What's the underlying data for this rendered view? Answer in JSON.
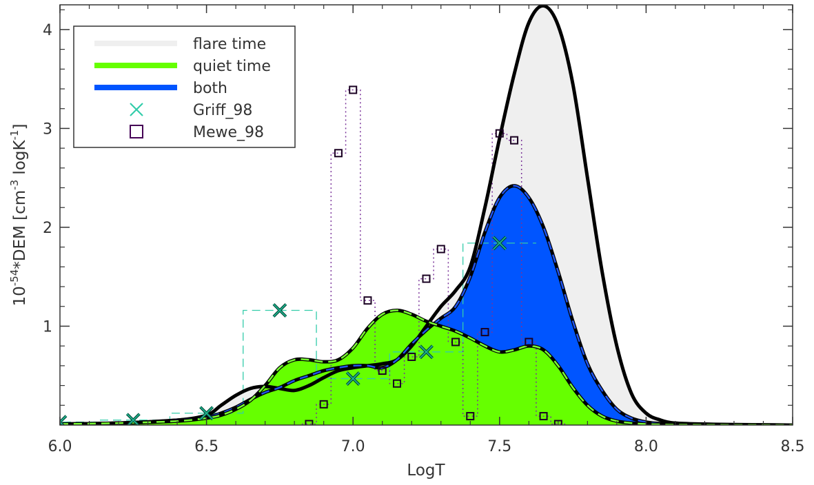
{
  "chart_data": {
    "type": "area",
    "xlabel": "LogT",
    "ylabel_main": "10",
    "ylabel_exp": "-54",
    "ylabel_mid": "*DEM [cm",
    "ylabel_exp2": "-3",
    "ylabel_mid2": " logK",
    "ylabel_exp3": "-1",
    "ylabel_end": "]",
    "xlim": [
      6.0,
      8.5
    ],
    "ylim": [
      0.0,
      4.25
    ],
    "xticks": [
      6.0,
      6.5,
      7.0,
      7.5,
      8.0,
      8.5
    ],
    "xtick_labels": [
      "6.0",
      "6.5",
      "7.0",
      "7.5",
      "8.0",
      "8.5"
    ],
    "yticks": [
      1,
      2,
      3,
      4
    ],
    "ytick_labels": [
      "1",
      "2",
      "3",
      "4"
    ],
    "legend_position": "top-left",
    "legend": [
      {
        "label": "flare time",
        "kind": "line",
        "color": "#efefef"
      },
      {
        "label": "quiet time",
        "kind": "line",
        "color": "#66ff00"
      },
      {
        "label": "both",
        "kind": "line",
        "color": "#0055ff"
      },
      {
        "label": "Griff_98",
        "kind": "x-marker",
        "color": "#33ccaa"
      },
      {
        "label": "Mewe_98",
        "kind": "square-marker",
        "color": "#440055"
      }
    ],
    "series": [
      {
        "name": "flare time",
        "fill": "#efefef",
        "x": [
          6.0,
          6.2,
          6.4,
          6.5,
          6.55,
          6.6,
          6.65,
          6.7,
          6.75,
          6.8,
          6.85,
          6.9,
          6.95,
          7.0,
          7.05,
          7.1,
          7.15,
          7.2,
          7.25,
          7.3,
          7.35,
          7.4,
          7.45,
          7.5,
          7.55,
          7.6,
          7.65,
          7.7,
          7.75,
          7.8,
          7.85,
          7.9,
          7.95,
          8.0,
          8.05,
          8.1,
          8.2,
          8.3,
          8.5
        ],
        "y": [
          0.01,
          0.02,
          0.05,
          0.1,
          0.2,
          0.3,
          0.37,
          0.39,
          0.37,
          0.35,
          0.4,
          0.48,
          0.55,
          0.58,
          0.6,
          0.62,
          0.66,
          0.8,
          1.0,
          1.2,
          1.36,
          1.6,
          2.2,
          2.9,
          3.55,
          4.07,
          4.24,
          4.04,
          3.45,
          2.5,
          1.55,
          0.8,
          0.32,
          0.12,
          0.05,
          0.02,
          0.01,
          0.005,
          0.0
        ]
      },
      {
        "name": "both",
        "fill": "#0055ff",
        "x": [
          6.0,
          6.2,
          6.4,
          6.5,
          6.55,
          6.6,
          6.65,
          6.7,
          6.75,
          6.8,
          6.85,
          6.9,
          6.95,
          7.0,
          7.05,
          7.1,
          7.15,
          7.2,
          7.25,
          7.3,
          7.35,
          7.4,
          7.45,
          7.5,
          7.55,
          7.6,
          7.65,
          7.7,
          7.75,
          7.8,
          7.85,
          7.9,
          7.95,
          8.0,
          8.05,
          8.1,
          8.2,
          8.3,
          8.5
        ],
        "y": [
          0.01,
          0.02,
          0.05,
          0.08,
          0.12,
          0.18,
          0.26,
          0.33,
          0.38,
          0.45,
          0.5,
          0.55,
          0.58,
          0.6,
          0.6,
          0.58,
          0.66,
          0.82,
          0.96,
          1.08,
          1.2,
          1.5,
          1.95,
          2.3,
          2.42,
          2.3,
          2.0,
          1.55,
          1.05,
          0.62,
          0.35,
          0.16,
          0.07,
          0.03,
          0.015,
          0.008,
          0.004,
          0.002,
          0.0
        ]
      },
      {
        "name": "quiet time",
        "fill": "#66ff00",
        "x": [
          6.0,
          6.2,
          6.4,
          6.5,
          6.55,
          6.6,
          6.65,
          6.7,
          6.75,
          6.8,
          6.85,
          6.9,
          6.95,
          7.0,
          7.05,
          7.1,
          7.15,
          7.2,
          7.25,
          7.3,
          7.35,
          7.4,
          7.45,
          7.5,
          7.55,
          7.6,
          7.65,
          7.7,
          7.75,
          7.8,
          7.85,
          7.9,
          7.95,
          8.0,
          8.05,
          8.1,
          8.2,
          8.3,
          8.5
        ],
        "y": [
          0.01,
          0.02,
          0.04,
          0.07,
          0.1,
          0.16,
          0.25,
          0.4,
          0.58,
          0.66,
          0.66,
          0.64,
          0.66,
          0.78,
          0.98,
          1.12,
          1.16,
          1.12,
          1.05,
          1.0,
          0.95,
          0.88,
          0.8,
          0.74,
          0.76,
          0.8,
          0.76,
          0.6,
          0.38,
          0.2,
          0.09,
          0.04,
          0.02,
          0.01,
          0.006,
          0.003,
          0.002,
          0.001,
          0.0
        ]
      }
    ],
    "griff_98": {
      "name": "Griff_98",
      "color": "#33ccaa",
      "x": [
        6.0,
        6.25,
        6.5,
        6.75,
        7.0,
        7.25,
        7.5
      ],
      "y": [
        0.03,
        0.05,
        0.12,
        1.16,
        0.47,
        0.74,
        1.84
      ]
    },
    "mewe_98": {
      "name": "Mewe_98",
      "color": "#440055",
      "x": [
        6.85,
        6.9,
        6.95,
        7.0,
        7.05,
        7.1,
        7.15,
        7.2,
        7.25,
        7.3,
        7.35,
        7.4,
        7.45,
        7.5,
        7.55,
        7.6,
        7.65,
        7.7
      ],
      "y": [
        0.01,
        0.21,
        2.75,
        3.39,
        1.26,
        0.55,
        0.42,
        0.69,
        1.48,
        1.78,
        0.84,
        0.09,
        0.94,
        2.95,
        2.88,
        0.84,
        0.09,
        0.01
      ]
    }
  }
}
